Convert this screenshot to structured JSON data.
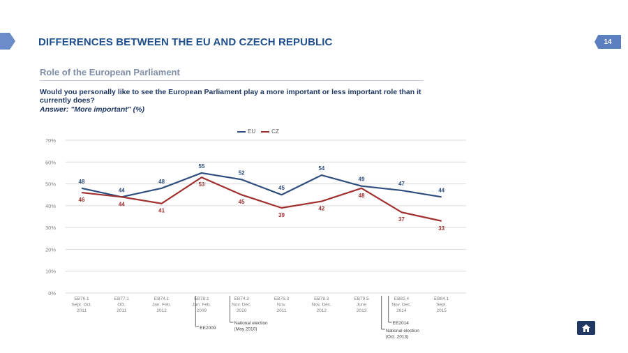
{
  "header": {
    "title": "DIFFERENCES BETWEEN THE EU AND CZECH REPUBLIC",
    "page_number": "14",
    "subtitle": "Role of the European Parliament",
    "question": "Would you personally like to see the European Parliament play a more important or less important role than it currently does?",
    "answer": "Answer: \"More important\" (%)"
  },
  "colors": {
    "eu": "#2e4e7e",
    "cz": "#a13030",
    "grid": "#d9d9d9",
    "axis_text": "#7f7f7f"
  },
  "chart_data": {
    "type": "line",
    "categories": [
      [
        "EB76.1",
        "Sept. Oct.",
        "2011"
      ],
      [
        "EB77.1",
        "Oct.",
        "2011"
      ],
      [
        "EB74.1",
        "Jan. Feb.",
        "2012"
      ],
      [
        "EB78.1",
        "Jan. Feb.",
        "2009"
      ],
      [
        "EB74.3",
        "Nov. Dec.",
        "2010"
      ],
      [
        "EB76.3",
        "Nov.",
        "2011"
      ],
      [
        "EB78.3",
        "Nov. Dec.",
        "2012"
      ],
      [
        "EB79.5",
        "June",
        "2013"
      ],
      [
        "EB82.4",
        "Nov. Dec.",
        "2014"
      ],
      [
        "EB84.1",
        "Sept.",
        "2015"
      ]
    ],
    "series": [
      {
        "name": "EU",
        "values": [
          48,
          44,
          48,
          55,
          52,
          45,
          54,
          49,
          47,
          44
        ]
      },
      {
        "name": "CZ",
        "values": [
          46,
          44,
          41,
          53,
          45,
          39,
          42,
          48,
          37,
          33
        ]
      }
    ],
    "ylim": [
      0,
      70
    ],
    "yticks": [
      "0%",
      "10%",
      "20%",
      "30%",
      "40%",
      "50%",
      "60%",
      "70%"
    ],
    "legend_position": "top-center",
    "grid": true,
    "annotations": [
      {
        "after_index": 3,
        "label": [
          "EE2009"
        ]
      },
      {
        "after_index": 4,
        "label": [
          "National election",
          "(May 2010)"
        ]
      },
      {
        "after_index": 8,
        "label": [
          "EE2014"
        ]
      },
      {
        "after_index": 8,
        "label": [
          "National election",
          "(Oct. 2013)"
        ]
      }
    ]
  }
}
